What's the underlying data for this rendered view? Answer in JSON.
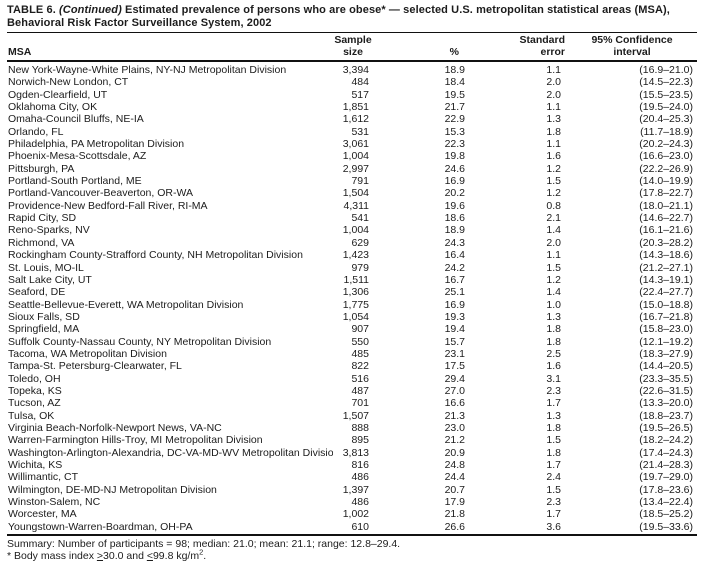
{
  "title": {
    "table_label": "TABLE 6. ",
    "continued": "(Continued)",
    "text": " Estimated prevalence of persons who are obese* — selected U.S. metropolitan statistical areas (MSA), Behavioral Risk Factor Surveillance System, 2002"
  },
  "table": {
    "columns": {
      "msa": "MSA",
      "sample_line1": "Sample",
      "sample_line2": "size",
      "percent": "%",
      "se_line1": "Standard",
      "se_line2": "error",
      "ci_line1": "95% Confidence",
      "ci_line2": "interval"
    },
    "rows": [
      [
        "New York-Wayne-White Plains, NY-NJ Metropolitan Division",
        "3,394",
        "18.9",
        "1.1",
        "(16.9–21.0)"
      ],
      [
        "Norwich-New London, CT",
        "484",
        "18.4",
        "2.0",
        "(14.5–22.3)"
      ],
      [
        "Ogden-Clearfield, UT",
        "517",
        "19.5",
        "2.0",
        "(15.5–23.5)"
      ],
      [
        "Oklahoma City, OK",
        "1,851",
        "21.7",
        "1.1",
        "(19.5–24.0)"
      ],
      [
        "Omaha-Council Bluffs, NE-IA",
        "1,612",
        "22.9",
        "1.3",
        "(20.4–25.3)"
      ],
      [
        "Orlando, FL",
        "531",
        "15.3",
        "1.8",
        "(11.7–18.9)"
      ],
      [
        "Philadelphia, PA Metropolitan Division",
        "3,061",
        "22.3",
        "1.1",
        "(20.2–24.3)"
      ],
      [
        "Phoenix-Mesa-Scottsdale, AZ",
        "1,004",
        "19.8",
        "1.6",
        "(16.6–23.0)"
      ],
      [
        "Pittsburgh, PA",
        "2,997",
        "24.6",
        "1.2",
        "(22.2–26.9)"
      ],
      [
        "Portland-South Portland, ME",
        "791",
        "16.9",
        "1.5",
        "(14.0–19.9)"
      ],
      [
        "Portland-Vancouver-Beaverton, OR-WA",
        "1,504",
        "20.2",
        "1.2",
        "(17.8–22.7)"
      ],
      [
        "Providence-New Bedford-Fall River, RI-MA",
        "4,311",
        "19.6",
        "0.8",
        "(18.0–21.1)"
      ],
      [
        "Rapid City, SD",
        "541",
        "18.6",
        "2.1",
        "(14.6–22.7)"
      ],
      [
        "Reno-Sparks, NV",
        "1,004",
        "18.9",
        "1.4",
        "(16.1–21.6)"
      ],
      [
        "Richmond, VA",
        "629",
        "24.3",
        "2.0",
        "(20.3–28.2)"
      ],
      [
        "Rockingham County-Strafford County, NH Metropolitan Division",
        "1,423",
        "16.4",
        "1.1",
        "(14.3–18.6)"
      ],
      [
        "St. Louis, MO-IL",
        "979",
        "24.2",
        "1.5",
        "(21.2–27.1)"
      ],
      [
        "Salt Lake City, UT",
        "1,511",
        "16.7",
        "1.2",
        "(14.3–19.1)"
      ],
      [
        "Seaford, DE",
        "1,306",
        "25.1",
        "1.4",
        "(22.4–27.7)"
      ],
      [
        "Seattle-Bellevue-Everett, WA Metropolitan Division",
        "1,775",
        "16.9",
        "1.0",
        "(15.0–18.8)"
      ],
      [
        "Sioux Falls, SD",
        "1,054",
        "19.3",
        "1.3",
        "(16.7–21.8)"
      ],
      [
        "Springfield, MA",
        "907",
        "19.4",
        "1.8",
        "(15.8–23.0)"
      ],
      [
        "Suffolk County-Nassau County, NY Metropolitan Division",
        "550",
        "15.7",
        "1.8",
        "(12.1–19.2)"
      ],
      [
        "Tacoma, WA Metropolitan Division",
        "485",
        "23.1",
        "2.5",
        "(18.3–27.9)"
      ],
      [
        "Tampa-St. Petersburg-Clearwater, FL",
        "822",
        "17.5",
        "1.6",
        "(14.4–20.5)"
      ],
      [
        "Toledo, OH",
        "516",
        "29.4",
        "3.1",
        "(23.3–35.5)"
      ],
      [
        "Topeka, KS",
        "487",
        "27.0",
        "2.3",
        "(22.6–31.5)"
      ],
      [
        "Tucson, AZ",
        "701",
        "16.6",
        "1.7",
        "(13.3–20.0)"
      ],
      [
        "Tulsa, OK",
        "1,507",
        "21.3",
        "1.3",
        "(18.8–23.7)"
      ],
      [
        "Virginia Beach-Norfolk-Newport News, VA-NC",
        "888",
        "23.0",
        "1.8",
        "(19.5–26.5)"
      ],
      [
        "Warren-Farmington Hills-Troy, MI Metropolitan Division",
        "895",
        "21.2",
        "1.5",
        "(18.2–24.2)"
      ],
      [
        "Washington-Arlington-Alexandria, DC-VA-MD-WV Metropolitan Division",
        "3,813",
        "20.9",
        "1.8",
        "(17.4–24.3)"
      ],
      [
        "Wichita, KS",
        "816",
        "24.8",
        "1.7",
        "(21.4–28.3)"
      ],
      [
        "Willimantic, CT",
        "486",
        "24.4",
        "2.4",
        "(19.7–29.0)"
      ],
      [
        "Wilmington, DE-MD-NJ Metropolitan Division",
        "1,397",
        "20.7",
        "1.5",
        "(17.8–23.6)"
      ],
      [
        "Winston-Salem, NC",
        "486",
        "17.9",
        "2.3",
        "(13.4–22.4)"
      ],
      [
        "Worcester, MA",
        "1,002",
        "21.8",
        "1.7",
        "(18.5–25.2)"
      ],
      [
        "Youngstown-Warren-Boardman, OH-PA",
        "610",
        "26.6",
        "3.6",
        "(19.5–33.6)"
      ]
    ]
  },
  "footer": {
    "summary": "Summary: Number of participants = 98; median: 21.0; mean: 21.1; range: 12.8–29.4.",
    "footnote_prefix": "* Body mass index ",
    "footnote_ge": ">",
    "footnote_mid": "30.0 and ",
    "footnote_le": "<",
    "footnote_tail": "99.8 kg/m",
    "footnote_sup": "2",
    "footnote_period": "."
  }
}
